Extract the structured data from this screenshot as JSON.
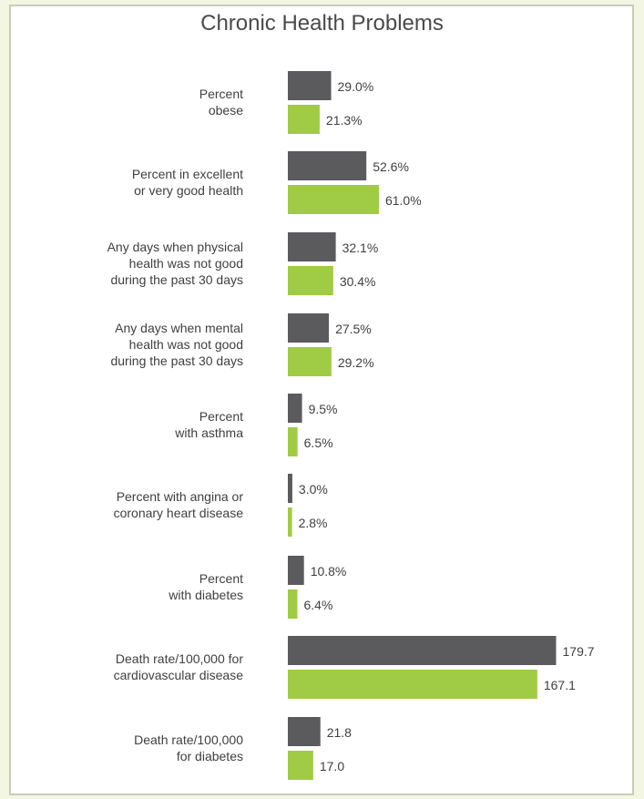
{
  "chart_data": {
    "type": "bar",
    "orientation": "horizontal",
    "title": "Chronic Health Problems",
    "xlabel": "",
    "ylabel": "",
    "grid": false,
    "categories": [
      [
        "Percent",
        "obese"
      ],
      [
        "Percent in excellent",
        "or very good health"
      ],
      [
        "Any days when physical",
        "health was not good",
        "during the past 30 days"
      ],
      [
        "Any days when mental",
        "health was not good",
        "during the past 30 days"
      ],
      [
        "Percent",
        "with asthma"
      ],
      [
        "Percent with angina or",
        "coronary heart disease"
      ],
      [
        "Percent",
        "with diabetes"
      ],
      [
        "Death rate/100,000 for",
        "cardiovascular disease"
      ],
      [
        "Death rate/100,000",
        "for diabetes"
      ]
    ],
    "series": [
      {
        "color": "#5b5b5e",
        "values": [
          29.0,
          52.6,
          32.1,
          27.5,
          9.5,
          3.0,
          10.8,
          179.7,
          21.8
        ],
        "labels": [
          "29.0%",
          "52.6%",
          "32.1%",
          "27.5%",
          "9.5%",
          "3.0%",
          "10.8%",
          "179.7",
          "21.8"
        ]
      },
      {
        "color": "#a0cb44",
        "values": [
          21.3,
          61.0,
          30.4,
          29.2,
          6.5,
          2.8,
          6.4,
          167.1,
          17.0
        ],
        "labels": [
          "21.3%",
          "61.0%",
          "30.4%",
          "29.2%",
          "6.5%",
          "2.8%",
          "6.4%",
          "167.1",
          "17.0"
        ]
      }
    ]
  }
}
